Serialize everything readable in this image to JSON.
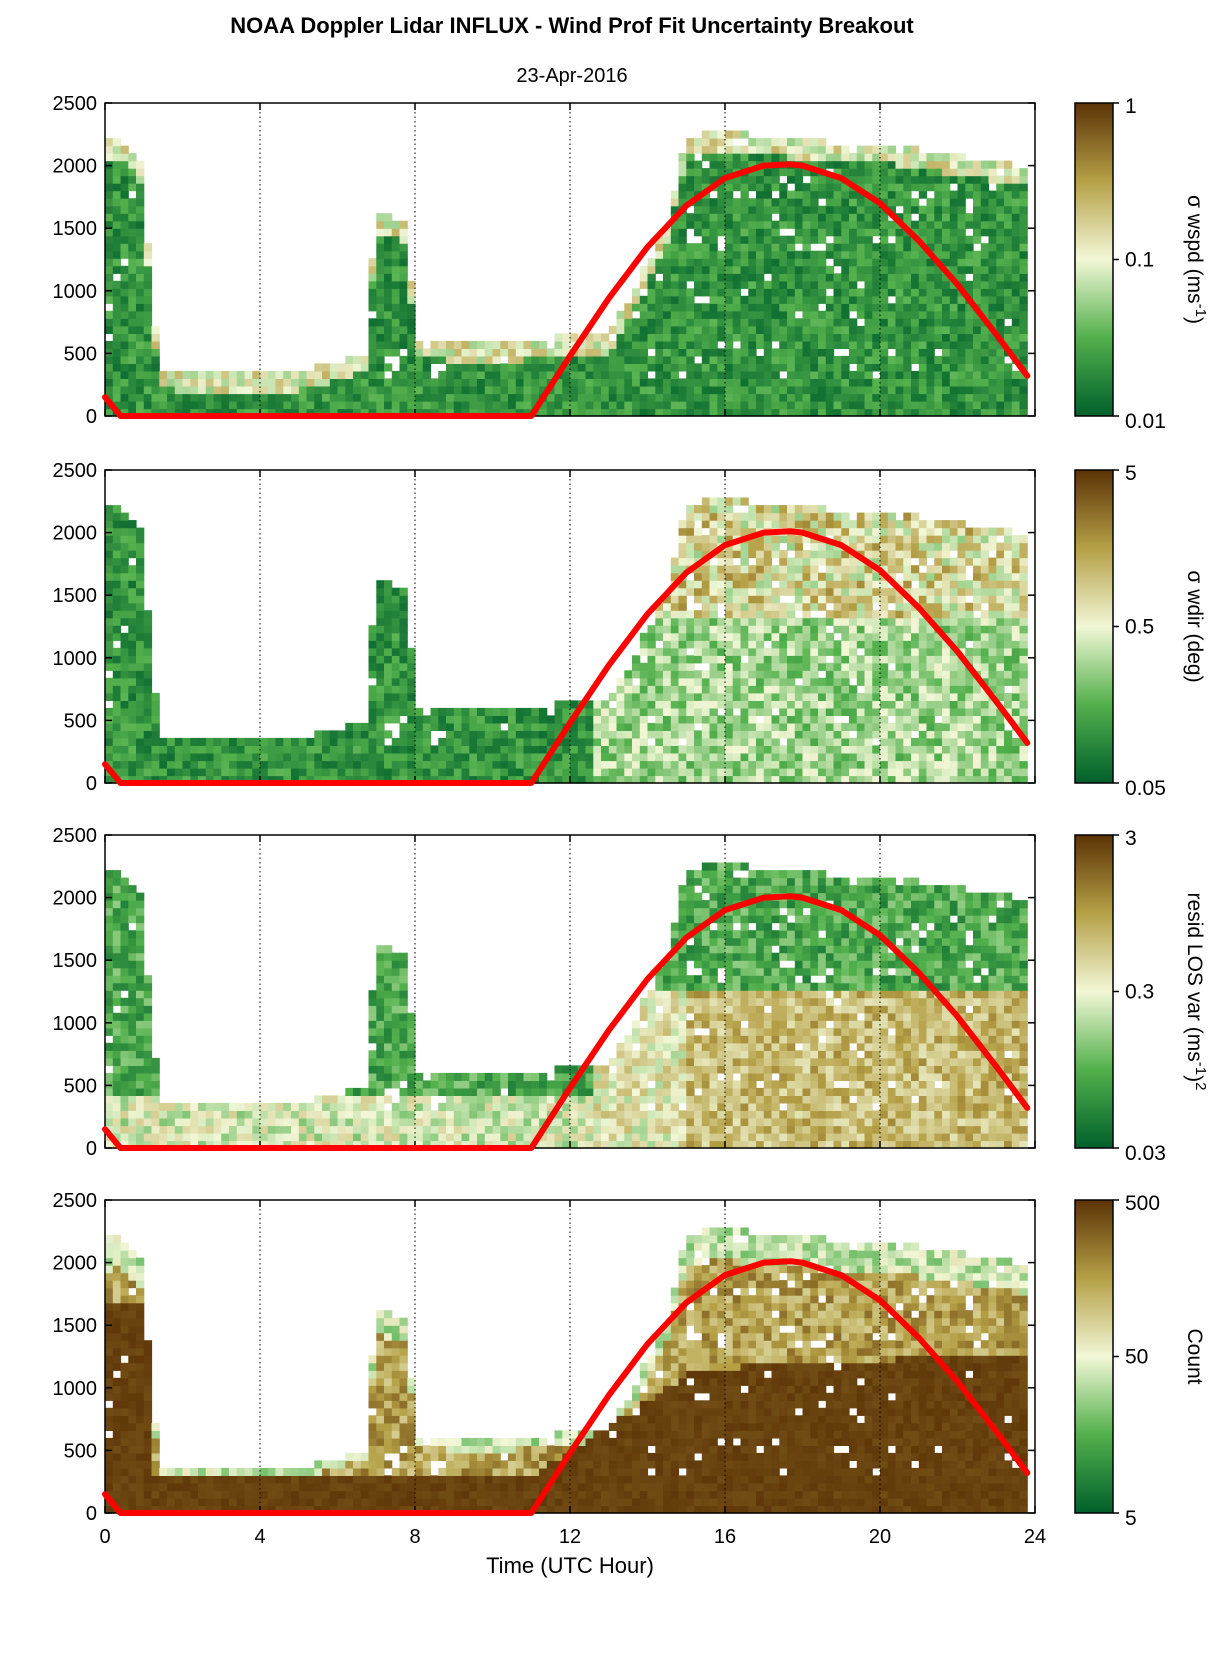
{
  "figure": {
    "title": "NOAA Doppler Lidar INFLUX - Wind Prof Fit Uncertainty Breakout",
    "subtitle": "23-Apr-2016"
  },
  "colors": {
    "low": "#00602b",
    "mid_low": "#52b04c",
    "mid": "#f2f7d6",
    "mid_high": "#b5a046",
    "high": "#5c3306",
    "curve": "#ff0000",
    "frame": "#000000"
  },
  "chart_data": [
    {
      "type": "heatmap",
      "xlabel": "",
      "ylabel": "",
      "xlim": [
        0,
        24
      ],
      "ylim": [
        0,
        2500
      ],
      "xticks": [
        "0",
        "4",
        "8",
        "12",
        "16",
        "20",
        "24"
      ],
      "yticks": [
        "0",
        "500",
        "1000",
        "1500",
        "2000",
        "2500"
      ],
      "xgrid": [
        4,
        8,
        12,
        16,
        20
      ],
      "colorbar": {
        "label": "σ wspd (ms-1)",
        "label_main": "σ wspd (ms",
        "label_sup": "-1",
        "label_tail": ")",
        "scale": "log",
        "ticks": [
          "0.01",
          "0.1",
          "1"
        ],
        "tick_values": [
          0.01,
          0.1,
          1
        ]
      },
      "field": "wspd",
      "curve": {
        "name": "",
        "description_x": [
          0.0,
          0.4,
          11.0,
          12,
          13,
          14,
          15,
          16,
          17,
          17.7,
          18,
          19,
          20,
          21,
          22,
          23,
          23.8
        ],
        "y": [
          150,
          0,
          0,
          480,
          940,
          1350,
          1680,
          1900,
          2000,
          2010,
          2000,
          1900,
          1700,
          1400,
          1050,
          650,
          320
        ]
      }
    },
    {
      "type": "heatmap",
      "xlabel": "",
      "ylabel": "",
      "xlim": [
        0,
        24
      ],
      "ylim": [
        0,
        2500
      ],
      "xticks": [
        "0",
        "4",
        "8",
        "12",
        "16",
        "20",
        "24"
      ],
      "yticks": [
        "0",
        "500",
        "1000",
        "1500",
        "2000",
        "2500"
      ],
      "xgrid": [
        4,
        8,
        12,
        16,
        20
      ],
      "colorbar": {
        "label": "σ wdir (deg)",
        "label_main": "σ wdir (deg)",
        "label_sup": "",
        "label_tail": "",
        "scale": "log",
        "ticks": [
          "0.05",
          "0.5",
          "5"
        ],
        "tick_values": [
          0.05,
          0.5,
          5
        ]
      },
      "field": "wdir",
      "curve": {
        "name": "",
        "description_x": [
          0.0,
          0.4,
          11.0,
          12,
          13,
          14,
          15,
          16,
          17,
          17.7,
          18,
          19,
          20,
          21,
          22,
          23,
          23.8
        ],
        "y": [
          150,
          0,
          0,
          480,
          940,
          1350,
          1680,
          1900,
          2000,
          2010,
          2000,
          1900,
          1700,
          1400,
          1050,
          650,
          320
        ]
      }
    },
    {
      "type": "heatmap",
      "xlabel": "",
      "ylabel": "",
      "xlim": [
        0,
        24
      ],
      "ylim": [
        0,
        2500
      ],
      "xticks": [
        "0",
        "4",
        "8",
        "12",
        "16",
        "20",
        "24"
      ],
      "yticks": [
        "0",
        "500",
        "1000",
        "1500",
        "2000",
        "2500"
      ],
      "xgrid": [
        4,
        8,
        12,
        16,
        20
      ],
      "colorbar": {
        "label": "resid LOS var (ms-1)2",
        "label_main": "resid LOS var (ms",
        "label_sup": "-1",
        "label_tail": ")2",
        "scale": "log",
        "ticks": [
          "0.03",
          "0.3",
          "3"
        ],
        "tick_values": [
          0.03,
          0.3,
          3
        ]
      },
      "field": "resid",
      "curve": {
        "name": "",
        "description_x": [
          0.0,
          0.4,
          11.0,
          12,
          13,
          14,
          15,
          16,
          17,
          17.7,
          18,
          19,
          20,
          21,
          22,
          23,
          23.8
        ],
        "y": [
          150,
          0,
          0,
          480,
          940,
          1350,
          1680,
          1900,
          2000,
          2010,
          2000,
          1900,
          1700,
          1400,
          1050,
          650,
          320
        ]
      }
    },
    {
      "type": "heatmap",
      "xlabel": "Time (UTC Hour)",
      "ylabel": "",
      "xlim": [
        0,
        24
      ],
      "ylim": [
        0,
        2500
      ],
      "xticks": [
        "0",
        "4",
        "8",
        "12",
        "16",
        "20",
        "24"
      ],
      "yticks": [
        "0",
        "500",
        "1000",
        "1500",
        "2000",
        "2500"
      ],
      "xgrid": [
        4,
        8,
        12,
        16,
        20
      ],
      "colorbar": {
        "label": "Count",
        "label_main": "Count",
        "label_sup": "",
        "label_tail": "",
        "scale": "log",
        "ticks": [
          "5",
          "50",
          "500"
        ],
        "tick_values": [
          5,
          50,
          500
        ]
      },
      "field": "count",
      "curve": {
        "name": "",
        "description_x": [
          0.0,
          0.4,
          11.0,
          12,
          13,
          14,
          15,
          16,
          17,
          17.7,
          18,
          19,
          20,
          21,
          22,
          23,
          23.8
        ],
        "y": [
          150,
          0,
          0,
          480,
          940,
          1350,
          1680,
          1900,
          2000,
          2010,
          2000,
          1900,
          1700,
          1400,
          1050,
          650,
          320
        ]
      }
    }
  ],
  "data_extent": {
    "x": [
      0,
      0.4,
      0.9,
      1.4,
      2,
      3,
      4,
      5,
      6,
      6.7,
      7.0,
      7.4,
      7.8,
      8.0,
      8.5,
      9.0,
      9.5,
      10,
      11,
      12,
      13,
      13.5,
      14,
      14.5,
      15,
      16,
      17,
      18,
      19,
      20,
      21,
      22,
      23,
      23.8
    ],
    "top_m": [
      2150,
      2200,
      2000,
      350,
      320,
      310,
      300,
      330,
      400,
      480,
      1600,
      1550,
      1500,
      600,
      580,
      560,
      560,
      540,
      580,
      620,
      620,
      900,
      1200,
      1500,
      2200,
      2250,
      2200,
      2180,
      2150,
      2150,
      2100,
      2050,
      2000,
      1950
    ]
  }
}
